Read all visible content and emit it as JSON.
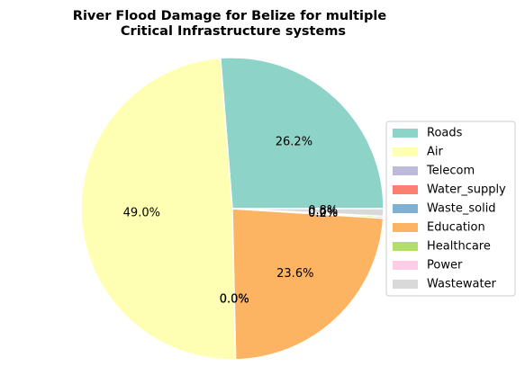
{
  "chart_data": {
    "type": "pie",
    "title_lines": [
      "River Flood Damage for Belize for multiple",
      "Critical Infrastructure systems"
    ],
    "labels": [
      "Roads",
      "Air",
      "Telecom",
      "Water_supply",
      "Waste_solid",
      "Education",
      "Healthcare",
      "Power",
      "Wastewater"
    ],
    "values": [
      26.2,
      49.0,
      0.0,
      0.0,
      0.0,
      23.6,
      0.2,
      0.0,
      0.8
    ],
    "pct_labels": [
      "26.2%",
      "49.0%",
      "0.0%",
      "0.0%",
      "0.0%",
      "23.6%",
      "0.2%",
      "0.0%",
      "0.8%"
    ],
    "colors": [
      "#8dd3c7",
      "#ffffb3",
      "#bebada",
      "#fb8072",
      "#80b1d3",
      "#fdb462",
      "#b3de69",
      "#fccde5",
      "#d9d9d9"
    ],
    "legend_position": "right",
    "start_angle": 0,
    "direction": "counterclockwise"
  }
}
